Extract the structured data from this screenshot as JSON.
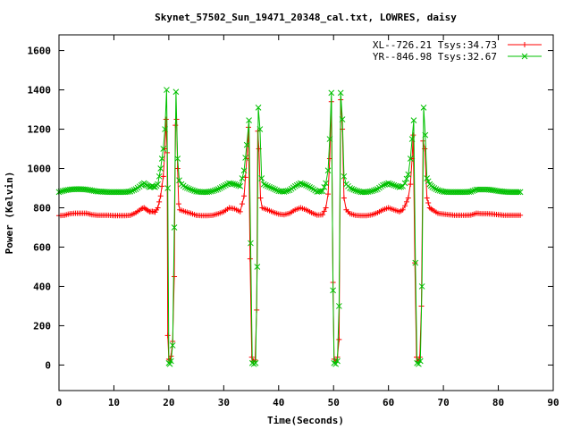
{
  "chart_data": {
    "type": "line",
    "title": "Skynet_57502_Sun_19471_20348_cal.txt, LOWRES, daisy",
    "xlabel": "Time(Seconds)",
    "ylabel": "Power (Kelvin)",
    "xlim": [
      0,
      90
    ],
    "ylim": [
      -130,
      1680
    ],
    "x_ticks": [
      0,
      10,
      20,
      30,
      40,
      50,
      60,
      70,
      80,
      90
    ],
    "y_ticks": [
      0,
      200,
      400,
      600,
      800,
      1000,
      1200,
      1400,
      1600
    ],
    "grid": false,
    "legend_position": "top-right",
    "series": [
      {
        "name": "XL--726.21 Tsys:34.73",
        "color": "#ff0000",
        "marker": "plus",
        "points": [
          [
            0,
            760
          ],
          [
            1,
            762
          ],
          [
            2,
            770
          ],
          [
            3,
            772
          ],
          [
            4,
            772
          ],
          [
            5,
            772
          ],
          [
            6,
            765
          ],
          [
            7,
            762
          ],
          [
            8,
            762
          ],
          [
            9,
            762
          ],
          [
            10,
            760
          ],
          [
            11,
            760
          ],
          [
            12,
            760
          ],
          [
            13,
            762
          ],
          [
            14,
            775
          ],
          [
            15,
            795
          ],
          [
            15.5,
            800
          ],
          [
            16,
            790
          ],
          [
            16.5,
            780
          ],
          [
            17,
            782
          ],
          [
            17.5,
            778
          ],
          [
            18,
            800
          ],
          [
            18.5,
            860
          ],
          [
            19,
            960
          ],
          [
            19.3,
            1100
          ],
          [
            19.5,
            1250
          ],
          [
            19.7,
            1080
          ],
          [
            19.8,
            150
          ],
          [
            20,
            30
          ],
          [
            20.2,
            25
          ],
          [
            20.4,
            45
          ],
          [
            20.7,
            120
          ],
          [
            21,
            450
          ],
          [
            21.2,
            1220
          ],
          [
            21.4,
            1250
          ],
          [
            21.6,
            1000
          ],
          [
            21.8,
            820
          ],
          [
            22,
            790
          ],
          [
            23,
            780
          ],
          [
            24,
            772
          ],
          [
            25,
            762
          ],
          [
            26,
            760
          ],
          [
            27,
            760
          ],
          [
            28,
            762
          ],
          [
            29,
            770
          ],
          [
            30,
            780
          ],
          [
            31,
            800
          ],
          [
            32,
            795
          ],
          [
            33,
            780
          ],
          [
            33.7,
            860
          ],
          [
            34.2,
            1050
          ],
          [
            34.5,
            1210
          ],
          [
            34.8,
            540
          ],
          [
            35.1,
            40
          ],
          [
            35.4,
            20
          ],
          [
            35.7,
            25
          ],
          [
            36,
            280
          ],
          [
            36.2,
            1190
          ],
          [
            36.4,
            1100
          ],
          [
            36.7,
            850
          ],
          [
            37,
            800
          ],
          [
            38,
            790
          ],
          [
            39,
            778
          ],
          [
            40,
            768
          ],
          [
            41,
            765
          ],
          [
            42,
            772
          ],
          [
            43,
            790
          ],
          [
            44,
            800
          ],
          [
            45,
            790
          ],
          [
            46,
            775
          ],
          [
            47,
            763
          ],
          [
            48,
            765
          ],
          [
            48.6,
            800
          ],
          [
            49,
            870
          ],
          [
            49.3,
            1050
          ],
          [
            49.6,
            1340
          ],
          [
            49.9,
            420
          ],
          [
            50.1,
            30
          ],
          [
            50.4,
            15
          ],
          [
            50.7,
            40
          ],
          [
            51,
            130
          ],
          [
            51.3,
            1350
          ],
          [
            51.6,
            1200
          ],
          [
            51.9,
            850
          ],
          [
            52.3,
            790
          ],
          [
            53,
            770
          ],
          [
            54,
            762
          ],
          [
            55,
            760
          ],
          [
            56,
            760
          ],
          [
            57,
            765
          ],
          [
            58,
            775
          ],
          [
            59,
            790
          ],
          [
            60,
            800
          ],
          [
            61,
            790
          ],
          [
            62,
            780
          ],
          [
            62.6,
            790
          ],
          [
            63,
            810
          ],
          [
            63.6,
            850
          ],
          [
            64,
            920
          ],
          [
            64.3,
            1050
          ],
          [
            64.5,
            1170
          ],
          [
            64.8,
            520
          ],
          [
            65.1,
            40
          ],
          [
            65.4,
            20
          ],
          [
            65.7,
            40
          ],
          [
            66,
            300
          ],
          [
            66.3,
            1140
          ],
          [
            66.6,
            1100
          ],
          [
            67,
            850
          ],
          [
            67.5,
            800
          ],
          [
            68,
            790
          ],
          [
            69,
            772
          ],
          [
            70,
            768
          ],
          [
            71,
            765
          ],
          [
            72,
            762
          ],
          [
            73,
            762
          ],
          [
            74,
            762
          ],
          [
            75,
            763
          ],
          [
            76,
            772
          ],
          [
            77,
            770
          ],
          [
            78,
            770
          ],
          [
            79,
            768
          ],
          [
            80,
            765
          ],
          [
            81,
            762
          ],
          [
            82,
            762
          ],
          [
            83,
            762
          ],
          [
            84,
            762
          ]
        ]
      },
      {
        "name": "YR--846.98 Tsys:32.67",
        "color": "#00c000",
        "marker": "cross",
        "points": [
          [
            0,
            880
          ],
          [
            1,
            888
          ],
          [
            2,
            893
          ],
          [
            3,
            895
          ],
          [
            4,
            895
          ],
          [
            5,
            893
          ],
          [
            6,
            888
          ],
          [
            7,
            883
          ],
          [
            8,
            882
          ],
          [
            9,
            880
          ],
          [
            10,
            880
          ],
          [
            11,
            880
          ],
          [
            12,
            880
          ],
          [
            13,
            883
          ],
          [
            14,
            895
          ],
          [
            15,
            915
          ],
          [
            15.5,
            925
          ],
          [
            16,
            915
          ],
          [
            16.5,
            905
          ],
          [
            17,
            910
          ],
          [
            17.5,
            905
          ],
          [
            18,
            920
          ],
          [
            18.5,
            1000
          ],
          [
            19,
            1100
          ],
          [
            19.3,
            1200
          ],
          [
            19.6,
            1400
          ],
          [
            19.8,
            900
          ],
          [
            20,
            10
          ],
          [
            20.2,
            5
          ],
          [
            20.4,
            20
          ],
          [
            20.7,
            100
          ],
          [
            21,
            700
          ],
          [
            21.3,
            1390
          ],
          [
            21.6,
            1050
          ],
          [
            21.9,
            940
          ],
          [
            22.3,
            920
          ],
          [
            23,
            905
          ],
          [
            24,
            893
          ],
          [
            25,
            883
          ],
          [
            26,
            880
          ],
          [
            27,
            880
          ],
          [
            28,
            885
          ],
          [
            29,
            895
          ],
          [
            30,
            910
          ],
          [
            31,
            925
          ],
          [
            32,
            920
          ],
          [
            33,
            910
          ],
          [
            33.7,
            990
          ],
          [
            34.2,
            1120
          ],
          [
            34.6,
            1245
          ],
          [
            34.9,
            620
          ],
          [
            35.2,
            10
          ],
          [
            35.5,
            5
          ],
          [
            35.8,
            10
          ],
          [
            36.1,
            500
          ],
          [
            36.3,
            1310
          ],
          [
            36.6,
            1200
          ],
          [
            36.9,
            950
          ],
          [
            37.3,
            920
          ],
          [
            38,
            910
          ],
          [
            39,
            898
          ],
          [
            40,
            885
          ],
          [
            41,
            882
          ],
          [
            42,
            890
          ],
          [
            43,
            910
          ],
          [
            44,
            925
          ],
          [
            45,
            915
          ],
          [
            46,
            900
          ],
          [
            47,
            882
          ],
          [
            48,
            885
          ],
          [
            48.6,
            925
          ],
          [
            49,
            990
          ],
          [
            49.3,
            1150
          ],
          [
            49.6,
            1385
          ],
          [
            49.9,
            380
          ],
          [
            50.1,
            10
          ],
          [
            50.4,
            5
          ],
          [
            50.7,
            20
          ],
          [
            51,
            300
          ],
          [
            51.3,
            1385
          ],
          [
            51.6,
            1250
          ],
          [
            51.9,
            960
          ],
          [
            52.3,
            920
          ],
          [
            53,
            900
          ],
          [
            54,
            888
          ],
          [
            55,
            880
          ],
          [
            56,
            880
          ],
          [
            57,
            885
          ],
          [
            58,
            895
          ],
          [
            59,
            915
          ],
          [
            60,
            925
          ],
          [
            61,
            915
          ],
          [
            62,
            905
          ],
          [
            62.6,
            910
          ],
          [
            63,
            925
          ],
          [
            63.6,
            970
          ],
          [
            64,
            1050
          ],
          [
            64.3,
            1150
          ],
          [
            64.6,
            1245
          ],
          [
            64.9,
            520
          ],
          [
            65.2,
            10
          ],
          [
            65.5,
            5
          ],
          [
            65.8,
            20
          ],
          [
            66.1,
            400
          ],
          [
            66.4,
            1310
          ],
          [
            66.7,
            1170
          ],
          [
            67,
            950
          ],
          [
            67.5,
            920
          ],
          [
            68,
            905
          ],
          [
            69,
            890
          ],
          [
            70,
            882
          ],
          [
            71,
            880
          ],
          [
            72,
            880
          ],
          [
            73,
            880
          ],
          [
            74,
            880
          ],
          [
            75,
            882
          ],
          [
            76,
            893
          ],
          [
            77,
            893
          ],
          [
            78,
            893
          ],
          [
            79,
            890
          ],
          [
            80,
            885
          ],
          [
            81,
            882
          ],
          [
            82,
            880
          ],
          [
            83,
            880
          ],
          [
            84,
            880
          ]
        ]
      }
    ]
  }
}
